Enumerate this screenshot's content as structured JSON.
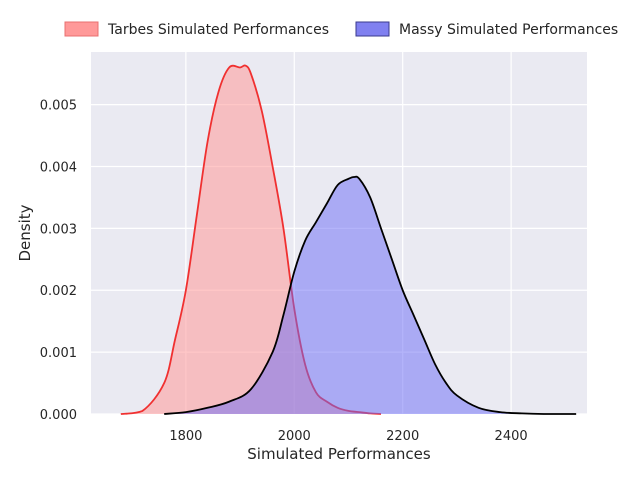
{
  "chart_data": {
    "type": "area",
    "subtype": "kde",
    "title": "",
    "xlabel": "Simulated Performances",
    "ylabel": "Density",
    "xlim": [
      1625,
      2540
    ],
    "ylim": [
      0,
      0.00585
    ],
    "xticks": [
      1800,
      2000,
      2200,
      2400
    ],
    "xtick_labels": [
      "1800",
      "2000",
      "2200",
      "2400"
    ],
    "yticks": [
      0,
      0.001,
      0.002,
      0.003,
      0.004,
      0.005
    ],
    "ytick_labels": [
      "0.000",
      "0.001",
      "0.002",
      "0.003",
      "0.004",
      "0.005"
    ],
    "grid": true,
    "background": "#eaeaf2",
    "legend": {
      "placement": "top, outside, two columns",
      "entries": [
        {
          "label": "Tarbes Simulated Performances",
          "fill": "#ff9999",
          "edge": "#e87070"
        },
        {
          "label": "Massy Simulated Performances",
          "fill": "#8080f0",
          "edge": "#3a3a8c"
        }
      ]
    },
    "series": [
      {
        "name": "Tarbes Simulated Performances",
        "line_color": "#f03030",
        "fill_color": "#ff9999",
        "fill_opacity": 0.55,
        "x": [
          1680,
          1720,
          1760,
          1780,
          1800,
          1820,
          1840,
          1860,
          1880,
          1900,
          1910,
          1920,
          1940,
          1960,
          1980,
          2000,
          2020,
          2040,
          2060,
          2080,
          2100,
          2120,
          2140,
          2160
        ],
        "y": [
          0.0,
          5e-05,
          0.0005,
          0.0012,
          0.002,
          0.0032,
          0.0044,
          0.0052,
          0.0056,
          0.0056,
          0.00563,
          0.0055,
          0.0049,
          0.004,
          0.003,
          0.0017,
          0.0008,
          0.00035,
          0.0002,
          0.0001,
          5e-05,
          3e-05,
          1e-05,
          0.0
        ]
      },
      {
        "name": "Massy Simulated Performances",
        "line_color": "#000000",
        "fill_color": "#6a6af5",
        "fill_opacity": 0.5,
        "x": [
          1760,
          1800,
          1840,
          1880,
          1920,
          1960,
          1980,
          2000,
          2020,
          2040,
          2060,
          2080,
          2100,
          2110,
          2120,
          2140,
          2160,
          2180,
          2200,
          2220,
          2240,
          2260,
          2280,
          2300,
          2340,
          2380,
          2420,
          2460,
          2500,
          2520
        ],
        "y": [
          0.0,
          3e-05,
          0.0001,
          0.0002,
          0.0004,
          0.001,
          0.0016,
          0.0023,
          0.0028,
          0.0031,
          0.0034,
          0.0037,
          0.0038,
          0.00383,
          0.0038,
          0.0035,
          0.003,
          0.0025,
          0.002,
          0.0016,
          0.0012,
          0.0008,
          0.0005,
          0.0003,
          0.0001,
          3e-05,
          1e-05,
          0.0,
          0.0,
          0.0
        ]
      }
    ]
  }
}
